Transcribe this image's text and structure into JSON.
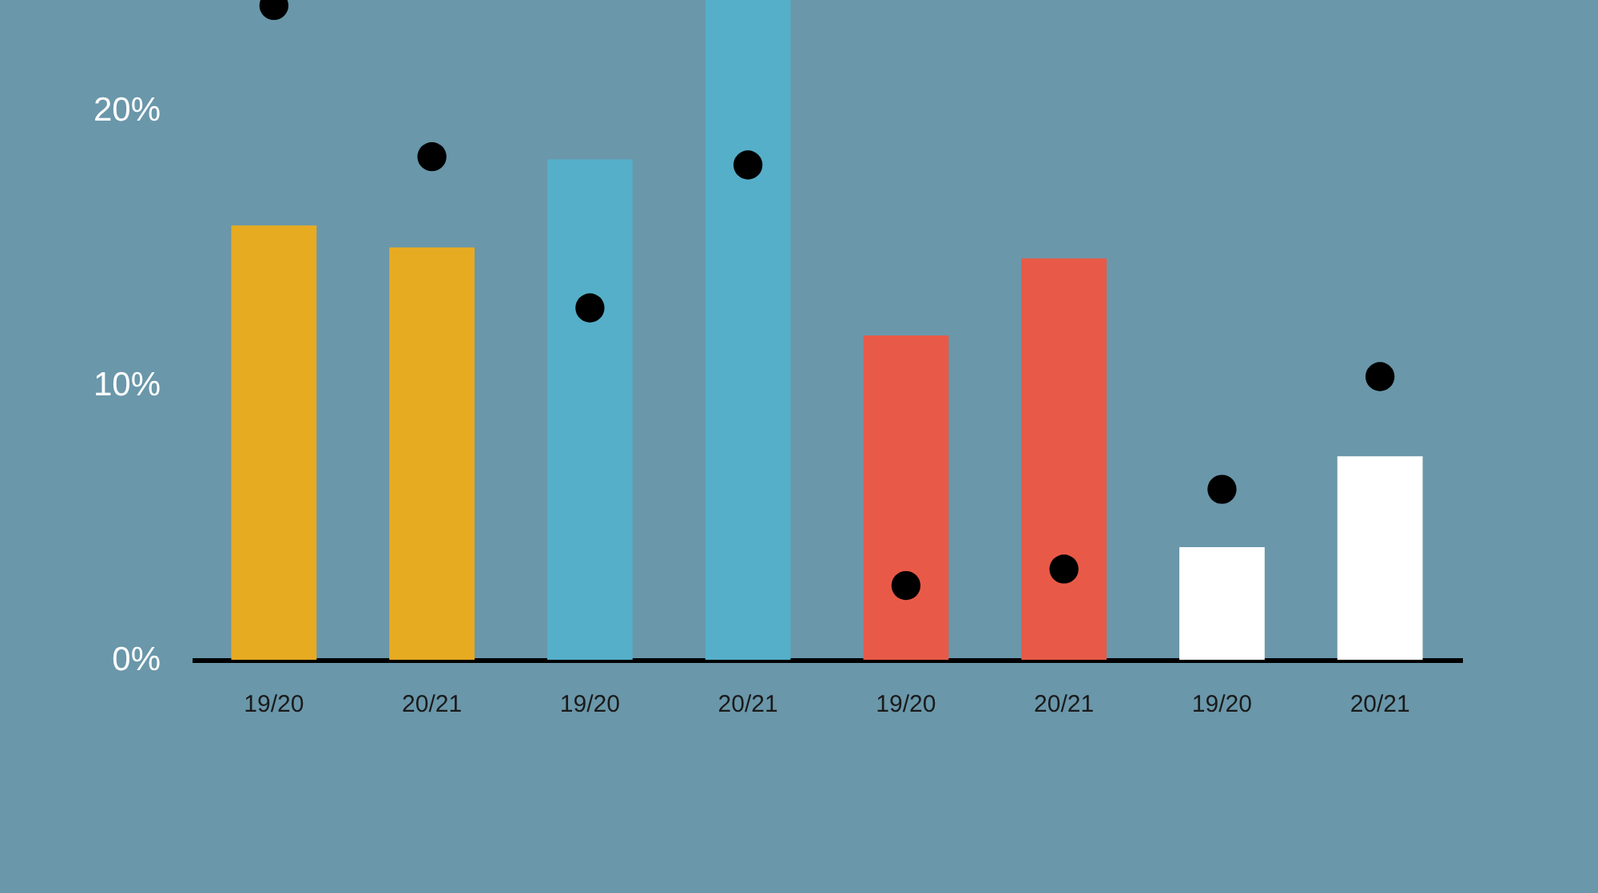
{
  "chart_data": {
    "type": "bar",
    "categories": [
      "19/20",
      "20/21",
      "19/20",
      "20/21",
      "19/20",
      "20/21",
      "19/20",
      "20/21"
    ],
    "series": [
      {
        "colors": [
          "#e6ab20",
          "#e6ab20",
          "#55afc9",
          "#55afc9",
          "#e85a47",
          "#e85a47",
          "#ffffff",
          "#ffffff"
        ],
        "values": [
          15.8,
          15.0,
          18.2,
          24,
          11.8,
          14.6,
          4.1,
          7.4
        ]
      },
      {
        "type": "scatter",
        "color": "#000000",
        "values": [
          23.8,
          18.3,
          12.8,
          18.0,
          2.7,
          3.3,
          6.2,
          10.3
        ]
      }
    ],
    "ylim": [
      0,
      24
    ],
    "yticks": [
      {
        "value": 0,
        "label": "0%"
      },
      {
        "value": 10,
        "label": "10%"
      },
      {
        "value": 20,
        "label": "20%"
      }
    ],
    "grid": false,
    "marker": "circle"
  }
}
